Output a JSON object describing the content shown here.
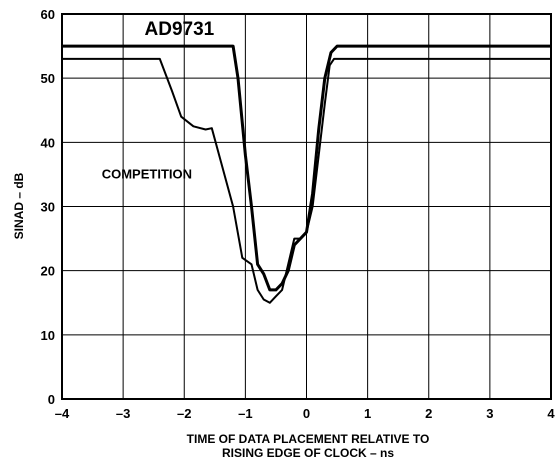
{
  "chart_data": {
    "type": "line",
    "title": "",
    "xlabel_line1": "TIME OF DATA PLACEMENT RELATIVE TO",
    "xlabel_line2": "RISING EDGE OF CLOCK – ns",
    "ylabel": "SINAD – dB",
    "xlim": [
      -4,
      4
    ],
    "ylim": [
      0,
      60
    ],
    "xticks": [
      -4,
      -3,
      -2,
      -1,
      0,
      1,
      2,
      3,
      4
    ],
    "xtick_labels": [
      "–4",
      "–3",
      "–2",
      "–1",
      "0",
      "1",
      "2",
      "3",
      "4"
    ],
    "yticks": [
      0,
      10,
      20,
      30,
      40,
      50,
      60
    ],
    "ytick_labels": [
      "0",
      "10",
      "20",
      "30",
      "40",
      "50",
      "60"
    ],
    "grid": true,
    "series": [
      {
        "name": "AD9731",
        "points": [
          [
            -4,
            55
          ],
          [
            -1.2,
            55
          ],
          [
            -1.12,
            50
          ],
          [
            -1.0,
            38
          ],
          [
            -0.9,
            30
          ],
          [
            -0.8,
            21
          ],
          [
            -0.7,
            19.5
          ],
          [
            -0.6,
            17
          ],
          [
            -0.5,
            17
          ],
          [
            -0.4,
            18
          ],
          [
            -0.3,
            20
          ],
          [
            -0.2,
            24
          ],
          [
            -0.1,
            25
          ],
          [
            0.0,
            26
          ],
          [
            0.1,
            32
          ],
          [
            0.2,
            42
          ],
          [
            0.3,
            50
          ],
          [
            0.4,
            54
          ],
          [
            0.5,
            55
          ],
          [
            0.6,
            55
          ],
          [
            4,
            55
          ]
        ]
      },
      {
        "name": "COMPETITION",
        "points": [
          [
            -4,
            53
          ],
          [
            -2.4,
            53
          ],
          [
            -2.2,
            48
          ],
          [
            -2.05,
            44
          ],
          [
            -1.85,
            42.5
          ],
          [
            -1.65,
            42
          ],
          [
            -1.55,
            42.2
          ],
          [
            -1.4,
            37
          ],
          [
            -1.2,
            30
          ],
          [
            -1.05,
            22
          ],
          [
            -0.9,
            21
          ],
          [
            -0.8,
            17
          ],
          [
            -0.7,
            15.5
          ],
          [
            -0.6,
            15
          ],
          [
            -0.5,
            16
          ],
          [
            -0.4,
            17
          ],
          [
            -0.3,
            21
          ],
          [
            -0.2,
            25
          ],
          [
            -0.1,
            25
          ],
          [
            0.0,
            26
          ],
          [
            0.1,
            30
          ],
          [
            0.2,
            38
          ],
          [
            0.3,
            46
          ],
          [
            0.38,
            52
          ],
          [
            0.45,
            53
          ],
          [
            0.5,
            53
          ],
          [
            4,
            53
          ]
        ]
      }
    ]
  }
}
